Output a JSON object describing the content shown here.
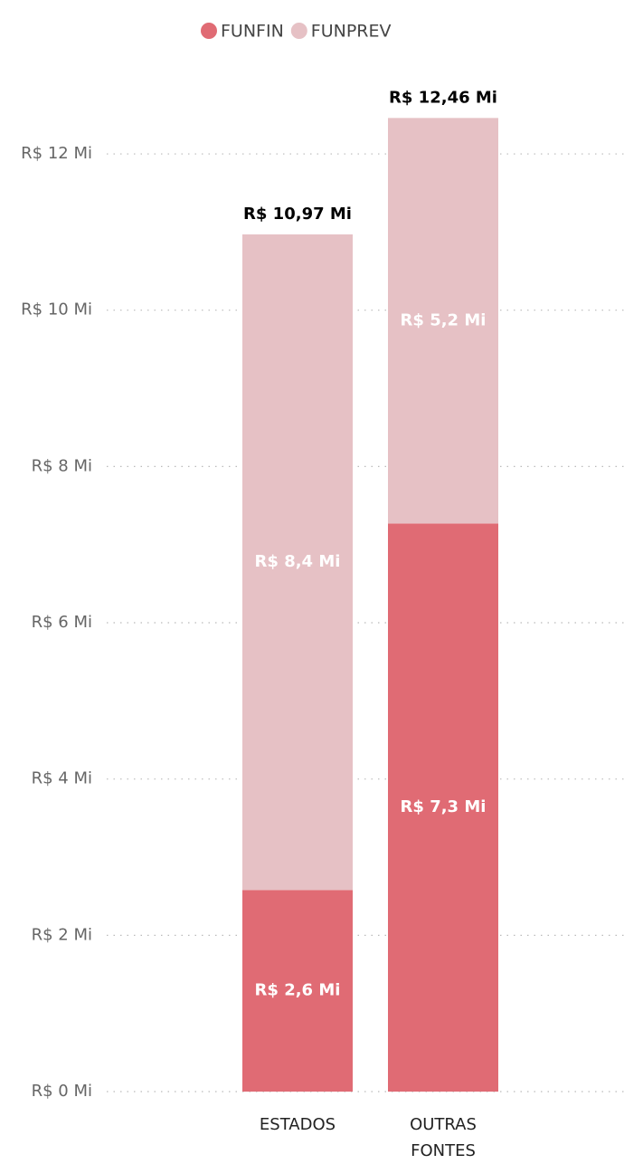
{
  "chart_data": {
    "type": "stacked_bar",
    "categories": [
      "ESTADOS",
      "OUTRAS FONTES"
    ],
    "series": [
      {
        "name": "FUNFIN",
        "color": "#e06b74",
        "values": [
          2.58,
          7.27
        ],
        "value_labels": [
          "R$ 2,6 Mi",
          "R$ 7,3 Mi"
        ]
      },
      {
        "name": "FUNPREV",
        "color": "#e6c1c5",
        "values": [
          8.39,
          5.19
        ],
        "value_labels": [
          "R$ 8,4 Mi",
          "R$ 5,2 Mi"
        ]
      }
    ],
    "totals": [
      10.97,
      12.46
    ],
    "total_labels": [
      "R$ 10,97 Mi",
      "R$ 12,46 Mi"
    ],
    "ylim": [
      0,
      12.5
    ],
    "yticks": [
      {
        "value": 0,
        "label": "R$ 0 Mi"
      },
      {
        "value": 2,
        "label": "R$ 2 Mi"
      },
      {
        "value": 4,
        "label": "R$ 4 Mi"
      },
      {
        "value": 6,
        "label": "R$ 6 Mi"
      },
      {
        "value": 8,
        "label": "R$ 8 Mi"
      },
      {
        "value": 10,
        "label": "R$ 10 Mi"
      },
      {
        "value": 12,
        "label": "R$ 12 Mi"
      }
    ],
    "grid": true,
    "legend": "top"
  }
}
